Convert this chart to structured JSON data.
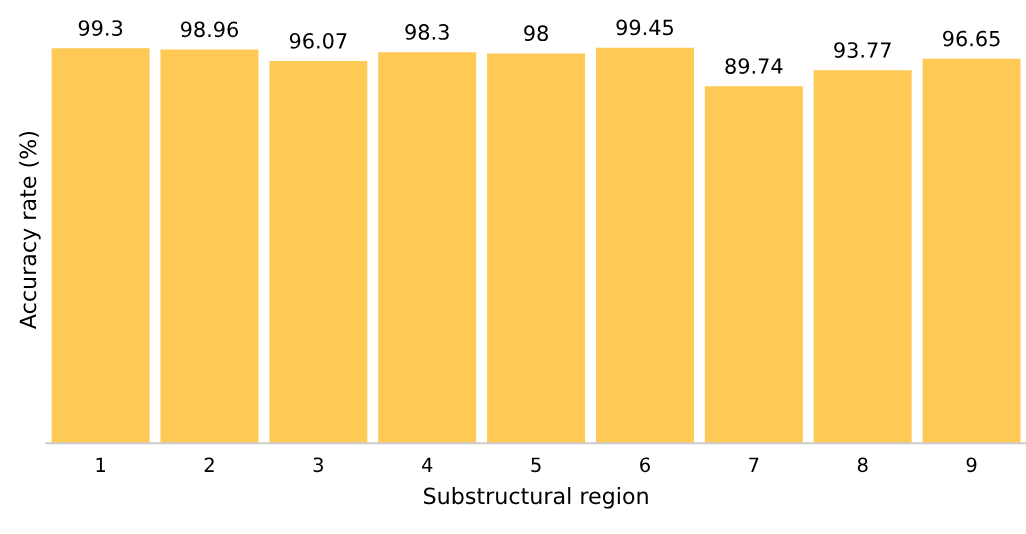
{
  "chart_data": {
    "type": "bar",
    "xlabel": "Substructural region",
    "ylabel": "Accuracy rate (%)",
    "categories": [
      "1",
      "2",
      "3",
      "4",
      "5",
      "6",
      "7",
      "8",
      "9"
    ],
    "values": [
      99.3,
      98.96,
      96.07,
      98.3,
      98,
      99.45,
      89.74,
      93.77,
      96.65
    ],
    "color": "#fec955",
    "tick_labels": "x",
    "data_labels": true,
    "grid": false,
    "legend": false
  }
}
